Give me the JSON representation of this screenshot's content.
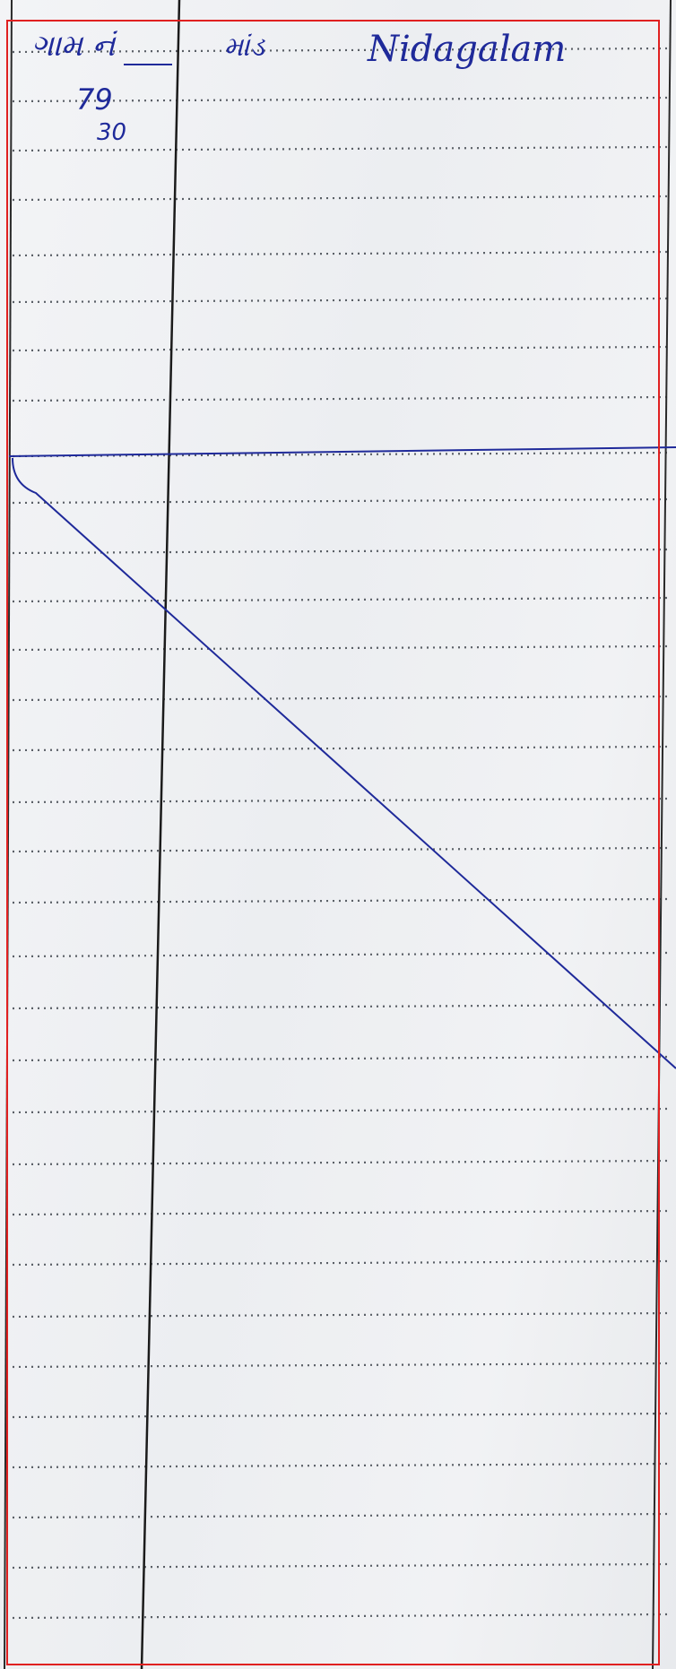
{
  "document": {
    "type": "ruled-ledger-page",
    "handwriting": {
      "heading_col1": "ગામ નં",
      "heading_col2": "માંડ",
      "heading_name": "Nidagalam",
      "number_upper": "79",
      "number_lower": "30"
    },
    "colors": {
      "paper": "#eef0f2",
      "rule_dots": "#5a5f66",
      "column_line": "#1b1b1b",
      "ink": "#1f2a9a",
      "frame": "#e02020"
    }
  }
}
